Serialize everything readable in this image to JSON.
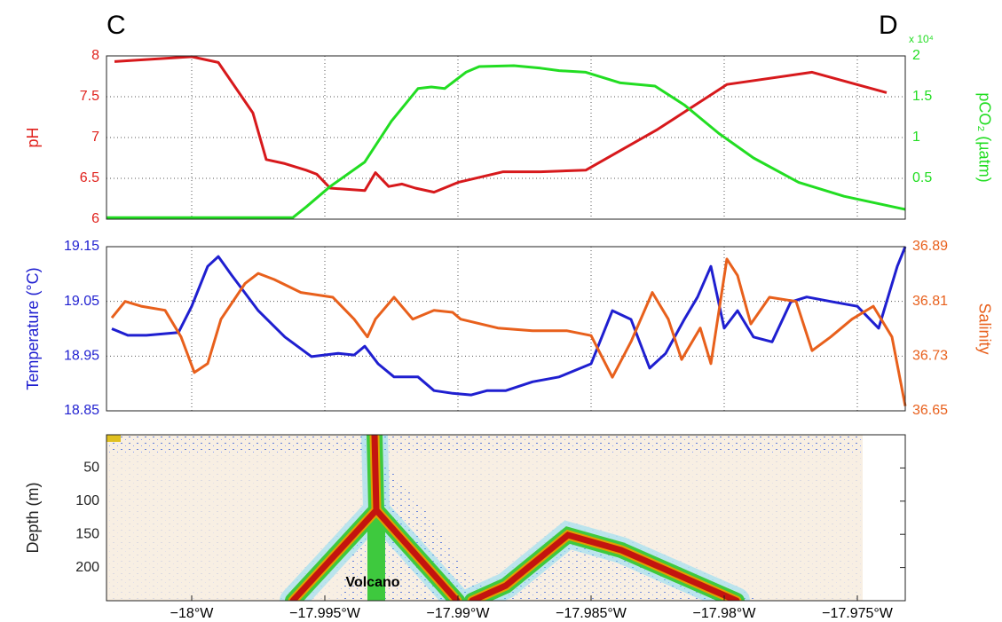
{
  "labels": {
    "left": "C",
    "right": "D"
  },
  "chart_data": [
    {
      "type": "line",
      "ylabel": "pH",
      "y2label": "pCO₂ (µatm)",
      "y2_multiplier": "x 10⁴",
      "xlim": [
        -18.0032,
        -17.9732
      ],
      "ylim": [
        6,
        8
      ],
      "yticks": [
        6,
        6.5,
        7,
        7.5,
        8
      ],
      "y2lim": [
        0,
        2
      ],
      "y2ticks": [
        0.5,
        1,
        1.5,
        2
      ],
      "grid": true,
      "ycolor": "#e0201b",
      "y2color": "#22dd22",
      "series": [
        {
          "color": "#d7191c",
          "x": [
            -18.0029,
            -18.0,
            -17.999,
            -17.9977,
            -17.9972,
            -17.9965,
            -17.9957,
            -17.9953,
            -17.9948,
            -17.9935,
            -17.9931,
            -17.9926,
            -17.9921,
            -17.9916,
            -17.9909,
            -17.99,
            -17.9883,
            -17.9869,
            -17.9852,
            -17.9825,
            -17.9799,
            -17.9767,
            -17.9739
          ],
          "values": [
            7.93,
            7.99,
            7.92,
            7.3,
            6.73,
            6.68,
            6.6,
            6.55,
            6.38,
            6.35,
            6.57,
            6.4,
            6.43,
            6.38,
            6.33,
            6.45,
            6.58,
            6.58,
            6.6,
            7.1,
            7.65,
            7.8,
            7.55
          ]
        },
        {
          "color": "#22dd22",
          "axis": "y2",
          "x": [
            -18.0032,
            -17.9962,
            -17.9957,
            -17.9948,
            -17.9935,
            -17.9925,
            -17.9915,
            -17.991,
            -17.9905,
            -17.9897,
            -17.9892,
            -17.9879,
            -17.9869,
            -17.9862,
            -17.9852,
            -17.9839,
            -17.9826,
            -17.9815,
            -17.9802,
            -17.9789,
            -17.9772,
            -17.9755,
            -17.9732
          ],
          "values": [
            0.02,
            0.02,
            0.15,
            0.4,
            0.7,
            1.2,
            1.6,
            1.62,
            1.6,
            1.8,
            1.87,
            1.88,
            1.85,
            1.82,
            1.8,
            1.67,
            1.63,
            1.4,
            1.05,
            0.75,
            0.45,
            0.28,
            0.12
          ]
        }
      ]
    },
    {
      "type": "line",
      "ylabel": "Temperature (°C)",
      "y2label": "Salinity",
      "xlim": [
        -18.0032,
        -17.9732
      ],
      "ylim": [
        18.85,
        19.15
      ],
      "yticks": [
        18.85,
        18.95,
        19.05,
        19.15
      ],
      "y2lim": [
        36.65,
        36.89
      ],
      "y2ticks": [
        36.65,
        36.73,
        36.81,
        36.89
      ],
      "grid": true,
      "ycolor": "#1f1fd0",
      "y2color": "#e8601c",
      "series": [
        {
          "color": "#1f1fd0",
          "x": [
            -18.003,
            -18.0024,
            -18.0017,
            -18.0005,
            -18.0,
            -17.9994,
            -17.999,
            -17.9985,
            -17.9975,
            -17.9965,
            -17.9955,
            -17.9945,
            -17.9939,
            -17.9935,
            -17.993,
            -17.9924,
            -17.9915,
            -17.9909,
            -17.9902,
            -17.9895,
            -17.9889,
            -17.9882,
            -17.9872,
            -17.9862,
            -17.985,
            -17.9842,
            -17.9835,
            -17.9828,
            -17.9822,
            -17.9815,
            -17.981,
            -17.9805,
            -17.98,
            -17.9795,
            -17.9789,
            -17.9782,
            -17.9775,
            -17.9769,
            -17.9759,
            -17.975,
            -17.9742,
            -17.9735,
            -17.9732
          ],
          "values": [
            19.0,
            18.988,
            18.988,
            18.993,
            19.041,
            19.114,
            19.132,
            19.098,
            19.033,
            18.985,
            18.949,
            18.955,
            18.952,
            18.968,
            18.936,
            18.912,
            18.912,
            18.887,
            18.882,
            18.879,
            18.887,
            18.887,
            18.903,
            18.912,
            18.936,
            19.033,
            19.017,
            18.928,
            18.955,
            19.017,
            19.058,
            19.114,
            19.001,
            19.033,
            18.985,
            18.976,
            19.049,
            19.058,
            19.049,
            19.041,
            19.001,
            19.114,
            19.15
          ]
        },
        {
          "color": "#e8601c",
          "axis": "y2",
          "x": [
            -18.003,
            -18.0025,
            -18.0019,
            -18.001,
            -18.0004,
            -17.9999,
            -17.9994,
            -17.9989,
            -17.998,
            -17.9975,
            -17.9969,
            -17.9959,
            -17.9947,
            -17.9939,
            -17.9934,
            -17.9931,
            -17.9924,
            -17.9917,
            -17.9909,
            -17.9902,
            -17.9899,
            -17.9885,
            -17.9872,
            -17.9859,
            -17.985,
            -17.9842,
            -17.9835,
            -17.9827,
            -17.9821,
            -17.9816,
            -17.9809,
            -17.9805,
            -17.9799,
            -17.9795,
            -17.979,
            -17.9783,
            -17.9773,
            -17.9767,
            -17.976,
            -17.9752,
            -17.9744,
            -17.9737,
            -17.9732
          ],
          "values": [
            36.786,
            36.81,
            36.803,
            36.797,
            36.758,
            36.706,
            36.719,
            36.784,
            36.836,
            36.851,
            36.842,
            36.823,
            36.816,
            36.784,
            36.758,
            36.784,
            36.816,
            36.784,
            36.797,
            36.794,
            36.784,
            36.771,
            36.767,
            36.767,
            36.76,
            36.699,
            36.751,
            36.823,
            36.784,
            36.725,
            36.771,
            36.719,
            36.872,
            36.848,
            36.777,
            36.816,
            36.81,
            36.738,
            36.758,
            36.784,
            36.803,
            36.758,
            36.657
          ]
        }
      ]
    },
    {
      "type": "echogram",
      "ylabel": "Depth (m)",
      "annotation": "Volcano",
      "xlim": [
        -18.0032,
        -17.9732
      ],
      "ylim": [
        250,
        0
      ],
      "yticks": [
        50,
        100,
        150,
        200
      ],
      "xticks": [
        {
          "value": -18,
          "label": "−18°W"
        },
        {
          "value": -17.995,
          "label": "−17.995°W"
        },
        {
          "value": -17.99,
          "label": "−17.99°W"
        },
        {
          "value": -17.985,
          "label": "−17.985°W"
        },
        {
          "value": -17.98,
          "label": "−17.98°W"
        },
        {
          "value": -17.975,
          "label": "−17.975°W"
        }
      ]
    }
  ]
}
